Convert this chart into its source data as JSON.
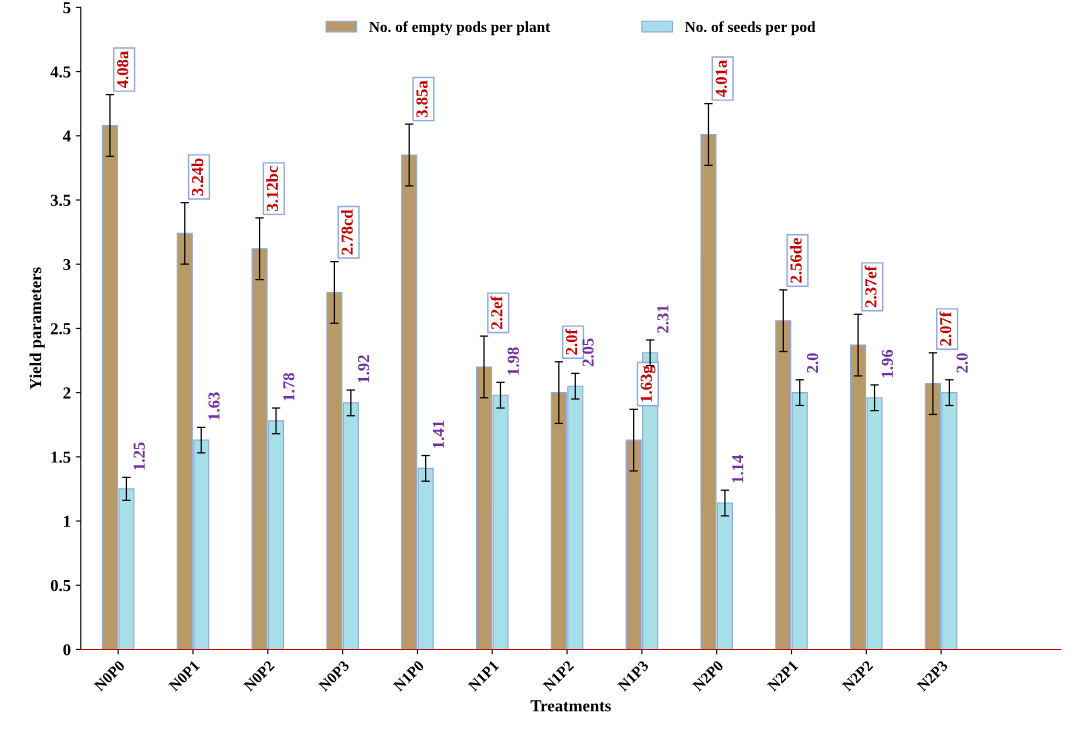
{
  "chart_data": {
    "type": "bar",
    "xlabel": "Treatments",
    "ylabel": "Yield parameters",
    "categories": [
      "N0P0",
      "N0P1",
      "N0P2",
      "N0P3",
      "N1P0",
      "N1P1",
      "N1P2",
      "N1P3",
      "N2P0",
      "N2P1",
      "N2P2",
      "N2P3"
    ],
    "series": [
      {
        "name": "No. of empty pods per plant",
        "color": "#b89a68",
        "values": [
          4.08,
          3.24,
          3.12,
          2.78,
          3.85,
          2.2,
          2.0,
          1.63,
          4.01,
          2.56,
          2.37,
          2.07
        ],
        "errors": [
          0.24,
          0.24,
          0.24,
          0.24,
          0.24,
          0.24,
          0.24,
          0.24,
          0.24,
          0.24,
          0.24,
          0.24
        ],
        "value_labels": [
          "4.08a",
          "3.24b",
          "3.12bc",
          "2.78cd",
          "3.85a",
          "2.2ef",
          "2.0f",
          "1.63g",
          "4.01a",
          "2.56de",
          "2.37ef",
          "2.07f"
        ]
      },
      {
        "name": "No. of seeds per pod",
        "color": "#a6dfe8",
        "values": [
          1.25,
          1.63,
          1.78,
          1.92,
          1.41,
          1.98,
          2.05,
          2.31,
          1.14,
          2.0,
          1.96,
          2.0
        ],
        "errors": [
          0.09,
          0.1,
          0.1,
          0.1,
          0.1,
          0.1,
          0.1,
          0.1,
          0.1,
          0.1,
          0.1,
          0.1
        ],
        "value_labels": [
          "1.25",
          "1.63",
          "1.78",
          "1.92",
          "1.41",
          "1.98",
          "2.05",
          "2.31",
          "1.14",
          "2.0",
          "1.96",
          "2.0"
        ]
      }
    ],
    "ylim": [
      0,
      5
    ],
    "yticks": [
      0,
      0.5,
      1,
      1.5,
      2,
      2.5,
      3,
      3.5,
      4,
      4.5,
      5
    ],
    "legend": "top",
    "grid": false
  }
}
